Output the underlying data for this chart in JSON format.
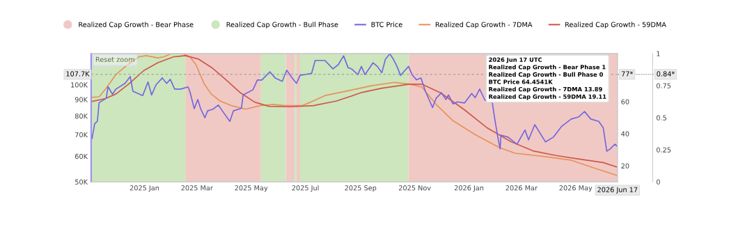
{
  "chart_data": {
    "type": "line",
    "legend": "top",
    "log": "y",
    "tick_labels": "xy",
    "xlim": [
      "2024-11-02",
      "2026-06-17"
    ],
    "xticks": [
      {
        "value": "2025-01-01",
        "label": "2025 Jan"
      },
      {
        "value": "2025-03-01",
        "label": "2025 Mar"
      },
      {
        "value": "2025-05-01",
        "label": "2025 May"
      },
      {
        "value": "2025-07-01",
        "label": "2025 Jul"
      },
      {
        "value": "2025-09-01",
        "label": "2025 Sep"
      },
      {
        "value": "2025-11-01",
        "label": "2025 Nov"
      },
      {
        "value": "2026-01-01",
        "label": "2026 Jan"
      },
      {
        "value": "2026-03-01",
        "label": "2026 Mar"
      },
      {
        "value": "2026-05-01",
        "label": "2026 May"
      }
    ],
    "ylim": [
      50000,
      125000
    ],
    "yticks": [
      {
        "value": 50000,
        "label": "50K"
      },
      {
        "value": 60000,
        "label": "60K"
      },
      {
        "value": 70000,
        "label": "70K"
      },
      {
        "value": 80000,
        "label": "80K"
      },
      {
        "value": 90000,
        "label": "90K"
      },
      {
        "value": 100000,
        "label": "100K"
      }
    ],
    "y2lim": [
      10,
      90
    ],
    "y2ticks": [
      20,
      40,
      60
    ],
    "y3lim": [
      0,
      1
    ],
    "y3ticks": [
      0,
      0.25,
      0.5,
      0.75,
      1
    ],
    "ref_lines": [
      {
        "axis": "y",
        "value": 107700,
        "label": "107.7K"
      },
      {
        "axis": "x",
        "value": "2026-06-17",
        "label": "2026 Jun 17"
      }
    ],
    "annotations": [
      "Reset zoom",
      "2026 Jun 17 UTC",
      "Realized Cap Growth - Bear Phase 1",
      "Realized Cap Growth - Bull Phase 0",
      "BTC Price 64.4541K",
      "Realized Cap Growth - 7DMA 13.89",
      "Realized Cap Growth - 59DMA 19.11",
      "77*",
      "0.84*"
    ],
    "series": [
      {
        "name": "Realized Cap Growth - Bear Phase",
        "type": "area",
        "axis": "y3",
        "color": "#f0c9c4",
        "x": [
          "2025-02-16",
          "2025-05-12",
          "2025-05-20",
          "2025-06-09",
          "2025-06-19",
          "2025-06-20",
          "2025-06-21",
          "2025-06-25",
          "2025-08-01",
          "2025-10-25",
          "2026-06-17"
        ],
        "values": [
          1,
          1,
          null,
          1,
          1,
          null,
          1,
          1,
          null,
          1,
          1
        ]
      },
      {
        "name": "Realized Cap Growth - Bull Phase",
        "type": "area",
        "axis": "y3",
        "color": "#cde6bd",
        "x": [
          "2024-11-02",
          "2025-02-16",
          "2025-03-01",
          "2025-05-12",
          "2025-06-09",
          "2025-06-15",
          "2025-06-19",
          "2025-06-21",
          "2025-06-23",
          "2025-06-25",
          "2025-10-25"
        ],
        "values": [
          1,
          1,
          null,
          1,
          1,
          null,
          1,
          1,
          null,
          1,
          1
        ]
      },
      {
        "name": "BTC Price",
        "axis": "y",
        "color": "#7366e0",
        "x": [
          "2024-11-02",
          "2024-11-03",
          "2024-11-06",
          "2024-11-09",
          "2024-11-11",
          "2024-11-19",
          "2024-11-21",
          "2024-11-26",
          "2024-11-30",
          "2024-12-10",
          "2024-12-16",
          "2024-12-19",
          "2024-12-30",
          "2025-01-05",
          "2025-01-09",
          "2025-01-14",
          "2025-01-21",
          "2025-01-26",
          "2025-01-30",
          "2025-02-04",
          "2025-02-11",
          "2025-02-19",
          "2025-02-21",
          "2025-02-26",
          "2025-03-02",
          "2025-03-05",
          "2025-03-10",
          "2025-03-13",
          "2025-03-19",
          "2025-03-25",
          "2025-03-30",
          "2025-04-07",
          "2025-04-11",
          "2025-04-20",
          "2025-04-22",
          "2025-05-03",
          "2025-05-08",
          "2025-05-13",
          "2025-05-22",
          "2025-05-28",
          "2025-06-05",
          "2025-06-10",
          "2025-06-15",
          "2025-06-21",
          "2025-06-25",
          "2025-07-08",
          "2025-07-12",
          "2025-07-23",
          "2025-08-01",
          "2025-08-07",
          "2025-08-13",
          "2025-08-18",
          "2025-08-22",
          "2025-08-29",
          "2025-09-02",
          "2025-09-06",
          "2025-09-15",
          "2025-09-20",
          "2025-09-25",
          "2025-09-29",
          "2025-10-04",
          "2025-10-08",
          "2025-10-12",
          "2025-10-16",
          "2025-10-20",
          "2025-10-25",
          "2025-10-29",
          "2025-11-03",
          "2025-11-08",
          "2025-11-13",
          "2025-11-21",
          "2025-11-25",
          "2025-12-01",
          "2025-12-06",
          "2025-12-09",
          "2025-12-14",
          "2025-12-19",
          "2025-12-27",
          "2026-01-04",
          "2026-01-08",
          "2026-01-13",
          "2026-01-19",
          "2026-01-27",
          "2026-01-30",
          "2026-02-02",
          "2026-02-05",
          "2026-02-06",
          "2026-02-14",
          "2026-02-24",
          "2026-03-05",
          "2026-03-09",
          "2026-03-16",
          "2026-03-28",
          "2026-04-06",
          "2026-04-15",
          "2026-04-26",
          "2026-05-04",
          "2026-05-11",
          "2026-05-18",
          "2026-05-27",
          "2026-06-01",
          "2026-06-05",
          "2026-06-09",
          "2026-06-14",
          "2026-06-17"
        ],
        "values": [
          69200,
          68000,
          75700,
          77000,
          88000,
          90800,
          98600,
          93500,
          97000,
          101000,
          106000,
          95500,
          92600,
          102000,
          93000,
          100000,
          105000,
          101000,
          104000,
          97000,
          97000,
          98500,
          95500,
          84300,
          90000,
          84500,
          79000,
          83000,
          84000,
          86500,
          82700,
          77000,
          83000,
          84500,
          93000,
          96500,
          103500,
          103500,
          109700,
          105000,
          102500,
          111000,
          106000,
          101000,
          107000,
          108500,
          119000,
          119000,
          112000,
          115500,
          123000,
          113000,
          112000,
          107500,
          114000,
          107500,
          117000,
          114000,
          109000,
          120000,
          124800,
          120000,
          114000,
          107000,
          110000,
          114000,
          107500,
          103600,
          105000,
          95500,
          85000,
          90800,
          94500,
          90000,
          93000,
          87200,
          88500,
          87800,
          94000,
          91200,
          97000,
          89500,
          88800,
          78300,
          69800,
          63300,
          69800,
          68800,
          65400,
          72400,
          67500,
          75200,
          66500,
          68800,
          74200,
          78300,
          79400,
          82600,
          78300,
          77000,
          73500,
          62200,
          63300,
          65400,
          64454
        ]
      },
      {
        "name": "Realized Cap Growth - 7DMA",
        "axis": "y2",
        "color": "#e8915a",
        "x": [
          "2024-11-02",
          "2024-11-11",
          "2024-11-19",
          "2024-11-30",
          "2024-12-13",
          "2024-12-26",
          "2025-01-03",
          "2025-01-16",
          "2025-01-23",
          "2025-01-31",
          "2025-02-13",
          "2025-02-21",
          "2025-02-28",
          "2025-03-09",
          "2025-03-17",
          "2025-03-27",
          "2025-04-09",
          "2025-04-25",
          "2025-05-11",
          "2025-05-26",
          "2025-06-08",
          "2025-06-27",
          "2025-07-07",
          "2025-07-23",
          "2025-08-13",
          "2025-09-03",
          "2025-09-13",
          "2025-10-09",
          "2025-10-26",
          "2025-11-09",
          "2025-11-25",
          "2025-12-14",
          "2026-01-08",
          "2026-02-04",
          "2026-02-22",
          "2026-03-28",
          "2026-04-26",
          "2026-05-19",
          "2026-06-17"
        ],
        "values": [
          62.6,
          63,
          68.4,
          77,
          83,
          88,
          88.7,
          87.3,
          88,
          89.9,
          90,
          88,
          83,
          71.3,
          64.8,
          60.4,
          57.5,
          55.3,
          57.5,
          58.3,
          57.5,
          57.5,
          59.7,
          63.8,
          66.2,
          68.7,
          69.9,
          72,
          71,
          69.1,
          58.3,
          48.1,
          39.4,
          31.4,
          27.8,
          25.7,
          23.5,
          19.1,
          13.89
        ]
      },
      {
        "name": "Realized Cap Growth - 59DMA",
        "axis": "y2",
        "color": "#d0574a",
        "x": [
          "2024-11-02",
          "2024-11-18",
          "2024-11-30",
          "2024-12-15",
          "2024-12-31",
          "2025-01-16",
          "2025-02-03",
          "2025-02-16",
          "2025-03-03",
          "2025-03-19",
          "2025-04-03",
          "2025-04-19",
          "2025-05-05",
          "2025-05-21",
          "2025-06-14",
          "2025-07-10",
          "2025-08-05",
          "2025-09-03",
          "2025-09-25",
          "2025-10-26",
          "2025-11-09",
          "2025-11-30",
          "2025-12-26",
          "2026-01-21",
          "2026-02-17",
          "2026-03-14",
          "2026-04-09",
          "2026-05-05",
          "2026-06-01",
          "2026-06-17"
        ],
        "values": [
          60,
          61.9,
          64.8,
          71.3,
          79.3,
          84.3,
          88,
          88.7,
          86.5,
          80.7,
          73.5,
          65.5,
          59.7,
          57.1,
          56.8,
          57.5,
          60.4,
          65.8,
          68.4,
          70.9,
          70.9,
          65.5,
          55.3,
          43.8,
          35.1,
          29.3,
          26.4,
          24.2,
          22,
          19.11
        ]
      }
    ]
  }
}
